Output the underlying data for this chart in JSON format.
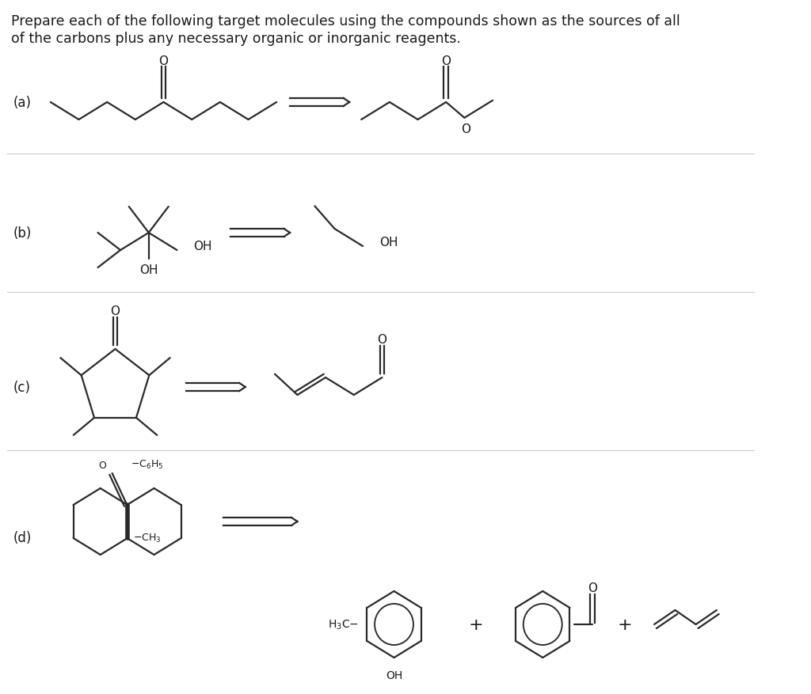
{
  "title_line1": "Prepare each of the following target molecules using the compounds shown as the sources of all",
  "title_line2": "of the carbons plus any necessary organic or inorganic reagents.",
  "bg_color": "#ffffff",
  "text_color": "#1a1a1a",
  "line_color": "#2a2a2a",
  "label_a": "(a)",
  "label_b": "(b)",
  "label_c": "(c)",
  "label_d": "(d)",
  "font_size_title": 12.5,
  "font_size_label": 12,
  "font_size_atom": 11,
  "font_size_group": 10
}
